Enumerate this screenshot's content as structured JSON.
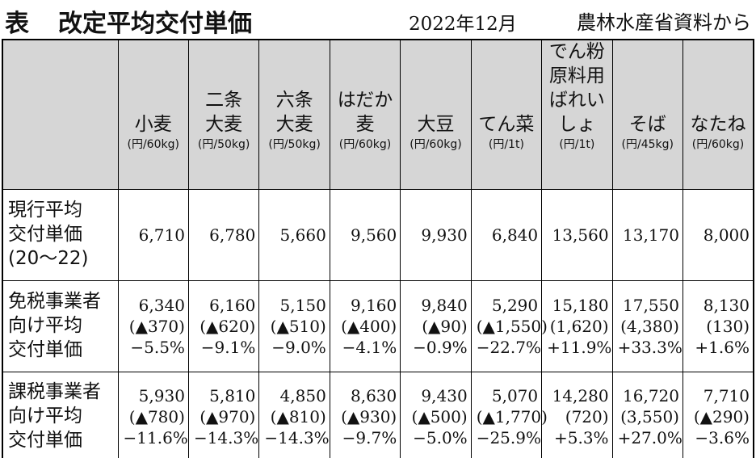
{
  "header": {
    "label": "表",
    "title": "改定平均交付単価",
    "date": "2022年12月",
    "source": "農林水産省資料から"
  },
  "table": {
    "columns": [
      {
        "name": [
          "小麦"
        ],
        "unit": "(円/60kg)"
      },
      {
        "name": [
          "二条",
          "大麦"
        ],
        "unit": "(円/50kg)"
      },
      {
        "name": [
          "六条",
          "大麦"
        ],
        "unit": "(円/50kg)"
      },
      {
        "name": [
          "はだか",
          "麦"
        ],
        "unit": "(円/60kg)"
      },
      {
        "name": [
          "大豆"
        ],
        "unit": "(円/60kg)"
      },
      {
        "name": [
          "てん菜"
        ],
        "unit": "(円/1t)"
      },
      {
        "name": [
          "でん粉",
          "原料用",
          "ばれい",
          "しょ"
        ],
        "unit": "(円/1t)"
      },
      {
        "name": [
          "そば"
        ],
        "unit": "(円/45kg)"
      },
      {
        "name": [
          "なたね"
        ],
        "unit": "(円/60kg)"
      }
    ],
    "rows": [
      {
        "label": [
          "現行平均",
          "交付単価",
          "(20〜22)"
        ],
        "cells": [
          [
            "6,710"
          ],
          [
            "6,780"
          ],
          [
            "5,660"
          ],
          [
            "9,560"
          ],
          [
            "9,930"
          ],
          [
            "6,840"
          ],
          [
            "13,560"
          ],
          [
            "13,170"
          ],
          [
            "8,000"
          ]
        ]
      },
      {
        "label": [
          "免税事業者",
          "向け平均",
          "交付単価"
        ],
        "cells": [
          [
            "6,340",
            "(▲370)",
            "−5.5%"
          ],
          [
            "6,160",
            "(▲620)",
            "−9.1%"
          ],
          [
            "5,150",
            "(▲510)",
            "−9.0%"
          ],
          [
            "9,160",
            "(▲400)",
            "−4.1%"
          ],
          [
            "9,840",
            "(▲90)",
            "−0.9%"
          ],
          [
            "5,290",
            "(▲1,550)",
            "−22.7%"
          ],
          [
            "15,180",
            "(1,620)",
            "+11.9%"
          ],
          [
            "17,550",
            "(4,380)",
            "+33.3%"
          ],
          [
            "8,130",
            "(130)",
            "+1.6%"
          ]
        ]
      },
      {
        "label": [
          "課税事業者",
          "向け平均",
          "交付単価"
        ],
        "cells": [
          [
            "5,930",
            "(▲780)",
            "−11.6%"
          ],
          [
            "5,810",
            "(▲970)",
            "−14.3%"
          ],
          [
            "4,850",
            "(▲810)",
            "−14.3%"
          ],
          [
            "8,630",
            "(▲930)",
            "−9.7%"
          ],
          [
            "9,430",
            "(▲500)",
            "−5.0%"
          ],
          [
            "5,070",
            "(▲1,770)",
            "−25.9%"
          ],
          [
            "14,280",
            "(720)",
            "+5.3%"
          ],
          [
            "16,720",
            "(3,550)",
            "+27.0%"
          ],
          [
            "7,710",
            "(▲290)",
            "−3.6%"
          ]
        ]
      }
    ]
  }
}
